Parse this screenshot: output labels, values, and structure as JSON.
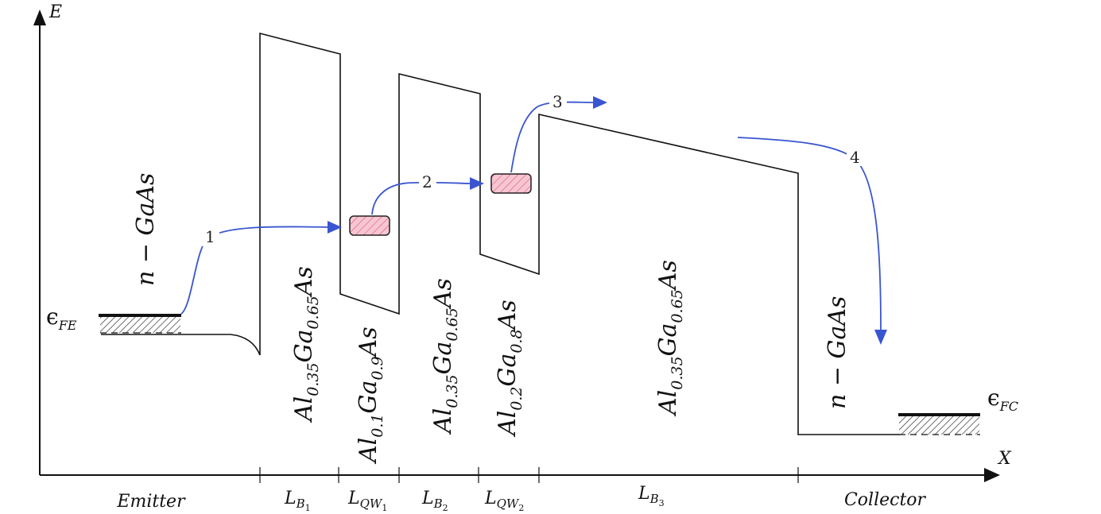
{
  "axes": {
    "y_label": "E",
    "x_label": "X"
  },
  "fermi_levels": {
    "emitter": {
      "symbol": "ϵ",
      "sub": "FE"
    },
    "collector": {
      "symbol": "ϵ",
      "sub": "FC"
    }
  },
  "materials": {
    "emitter": {
      "base": "n − GaAs"
    },
    "barrier1": {
      "pre": "Al",
      "x": "0.35",
      "mid": "Ga",
      "y": "0.65",
      "post": "As"
    },
    "well1": {
      "pre": "Al",
      "x": "0.1",
      "mid": "Ga",
      "y": "0.9",
      "post": "As"
    },
    "barrier2": {
      "pre": "Al",
      "x": "0.35",
      "mid": "Ga",
      "y": "0.65",
      "post": "As"
    },
    "well2": {
      "pre": "Al",
      "x": "0.2",
      "mid": "Ga",
      "y": "0.8",
      "post": "As"
    },
    "barrier3": {
      "pre": "Al",
      "x": "0.35",
      "mid": "Ga",
      "y": "0.65",
      "post": "As"
    },
    "collector": {
      "base": "n − GaAs"
    }
  },
  "regions": {
    "emitter": "Emitter",
    "lb1": {
      "main": "L",
      "sub": "B",
      "subsub": "1"
    },
    "lqw1": {
      "main": "L",
      "sub": "QW",
      "subsub": "1"
    },
    "lb2": {
      "main": "L",
      "sub": "B",
      "subsub": "2"
    },
    "lqw2": {
      "main": "L",
      "sub": "QW",
      "subsub": "2"
    },
    "lb3": {
      "main": "L",
      "sub": "B",
      "subsub": "3"
    },
    "collector": "Collector"
  },
  "transitions": [
    "1",
    "2",
    "3",
    "4"
  ],
  "colors": {
    "arrow": "#3a55d0",
    "state_fill": "#f7c6d3",
    "state_hatch": "#e0537a",
    "reservoir_hatch": "#333333"
  }
}
